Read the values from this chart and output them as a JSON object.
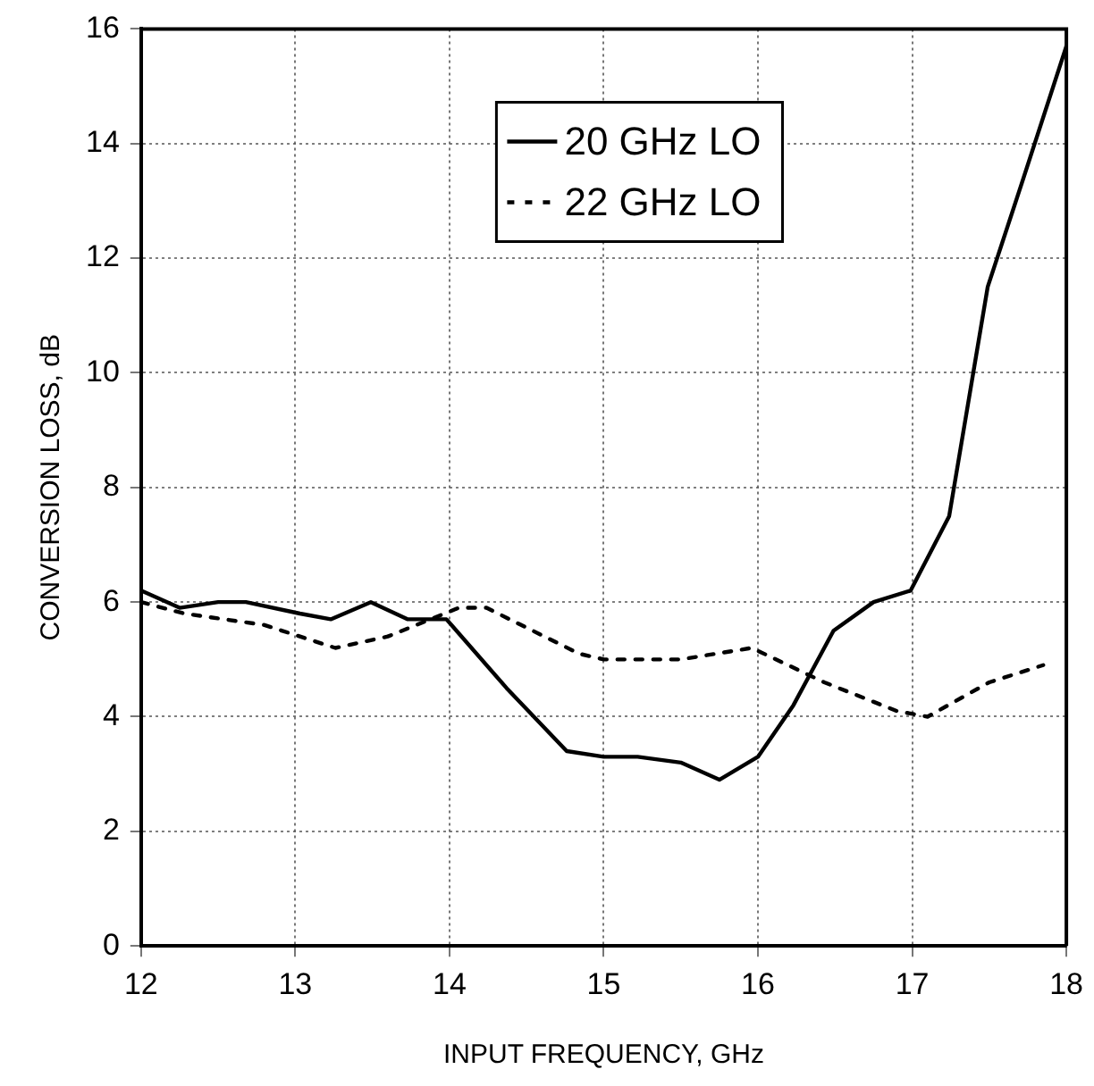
{
  "chart_data": {
    "type": "line",
    "xlabel": "INPUT FREQUENCY, GHz",
    "ylabel": "CONVERSION LOSS, dB",
    "xlim": [
      12,
      18
    ],
    "xticks": [
      12,
      13,
      14,
      15,
      16,
      17,
      18
    ],
    "ylim": [
      0,
      16
    ],
    "yticks": [
      0,
      2,
      4,
      6,
      8,
      10,
      12,
      14,
      16
    ],
    "grid": true,
    "legend": "top",
    "marker": "none",
    "series": [
      {
        "name": "20 GHz LO",
        "color": "#000000",
        "line_style": "solid",
        "x": [
          12,
          12.25,
          12.5,
          12.68,
          13.03,
          13.23,
          13.49,
          13.73,
          13.98,
          14.37,
          14.76,
          15.0,
          15.22,
          15.5,
          15.75,
          16.0,
          16.23,
          16.49,
          16.75,
          16.99,
          17.24,
          17.49,
          17.71,
          18.0
        ],
        "values": [
          6.2,
          5.9,
          6.0,
          6.0,
          5.8,
          5.7,
          6.0,
          5.7,
          5.7,
          4.5,
          3.4,
          3.3,
          3.3,
          3.2,
          2.9,
          3.3,
          4.2,
          5.5,
          6.0,
          6.2,
          7.5,
          11.5,
          13.3,
          15.7
        ]
      },
      {
        "name": "22 GHz LO",
        "color": "#000000",
        "line_style": "dashed",
        "x": [
          12,
          12.28,
          12.8,
          13.26,
          13.6,
          14.06,
          14.24,
          14.84,
          15.0,
          15.5,
          15.96,
          16.43,
          16.9,
          17.1,
          17.5,
          17.85
        ],
        "values": [
          6.0,
          5.8,
          5.6,
          5.2,
          5.4,
          5.9,
          5.9,
          5.1,
          5.0,
          5.0,
          5.2,
          4.6,
          4.1,
          4.0,
          4.6,
          4.9
        ]
      }
    ]
  }
}
